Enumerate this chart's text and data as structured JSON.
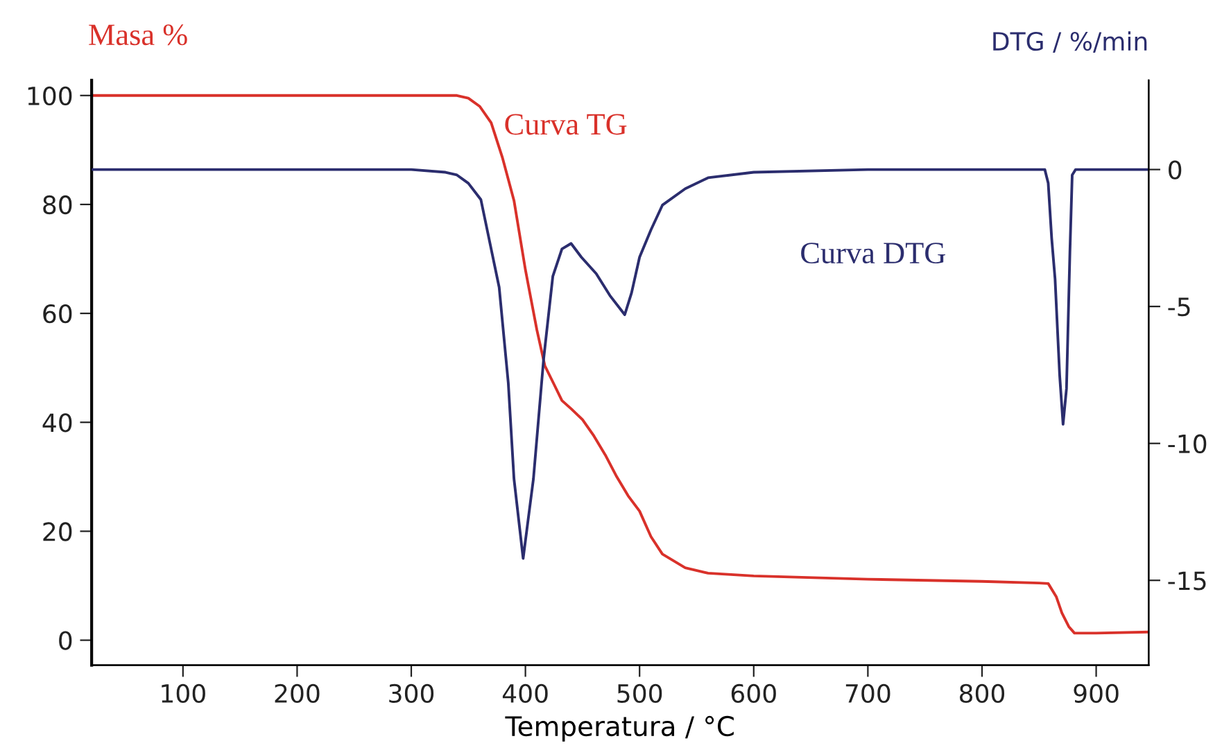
{
  "chart_data": {
    "type": "line",
    "xlabel": "Temperatura / °C",
    "ylabel": "Masa %",
    "y2label": "DTG / %/min",
    "xlim": [
      20,
      946
    ],
    "xticks": [
      100,
      200,
      300,
      400,
      500,
      600,
      700,
      800,
      900
    ],
    "ylim": [
      -4.6,
      102.8
    ],
    "yticks": [
      0,
      20,
      40,
      60,
      80,
      100
    ],
    "y2lim": [
      -18.1,
      3.26
    ],
    "y2ticks": [
      {
        "value": -15,
        "label": "-15"
      },
      {
        "value": -10,
        "label": "-10"
      },
      {
        "value": -5,
        "label": "-5"
      },
      0
    ],
    "grid": false,
    "legend": false,
    "marker": "none",
    "line_style": "solid",
    "series": [
      {
        "name": "Curva TG",
        "color": "#d9312a",
        "x": [
          20,
          100,
          200,
          300,
          340,
          350,
          360,
          370,
          380,
          390,
          400,
          410,
          417,
          425,
          432,
          440,
          450,
          460,
          470,
          480,
          490,
          500,
          510,
          520,
          540,
          560,
          600,
          700,
          800,
          850,
          858,
          865,
          870,
          876,
          881,
          900,
          946
        ],
        "values": [
          100,
          100,
          100,
          100,
          100,
          99.5,
          98,
          95,
          88.5,
          80.7,
          68,
          57,
          50.4,
          47,
          44,
          42.5,
          40.5,
          37.5,
          34,
          30,
          26.5,
          23.7,
          19,
          15.8,
          13.3,
          12.3,
          11.8,
          11.2,
          10.8,
          10.5,
          10.4,
          8,
          5,
          2.5,
          1.3,
          1.3,
          1.5
        ]
      },
      {
        "name": "Curva DTG",
        "color": "#2b2d6e",
        "axis": "y2",
        "x": [
          20,
          100,
          200,
          300,
          330,
          340,
          350,
          361,
          371,
          377,
          385,
          390,
          398,
          407,
          416,
          424,
          432,
          440,
          449,
          462,
          474,
          487,
          493,
          500,
          510,
          520,
          540,
          560,
          600,
          700,
          800,
          855,
          858,
          861,
          864,
          868,
          871,
          874,
          877,
          879,
          882,
          946
        ],
        "values": [
          0,
          0,
          0,
          0,
          -0.1,
          -0.2,
          -0.5,
          -1.1,
          -3.1,
          -4.3,
          -7.8,
          -11.3,
          -14.2,
          -11.3,
          -6.9,
          -3.9,
          -2.9,
          -2.7,
          -3.2,
          -3.8,
          -4.6,
          -5.3,
          -4.5,
          -3.2,
          -2.2,
          -1.3,
          -0.7,
          -0.3,
          -0.1,
          0,
          0,
          0,
          -0.5,
          -2.5,
          -4,
          -7.5,
          -9.3,
          -8,
          -3,
          -0.2,
          0,
          0
        ]
      }
    ]
  }
}
